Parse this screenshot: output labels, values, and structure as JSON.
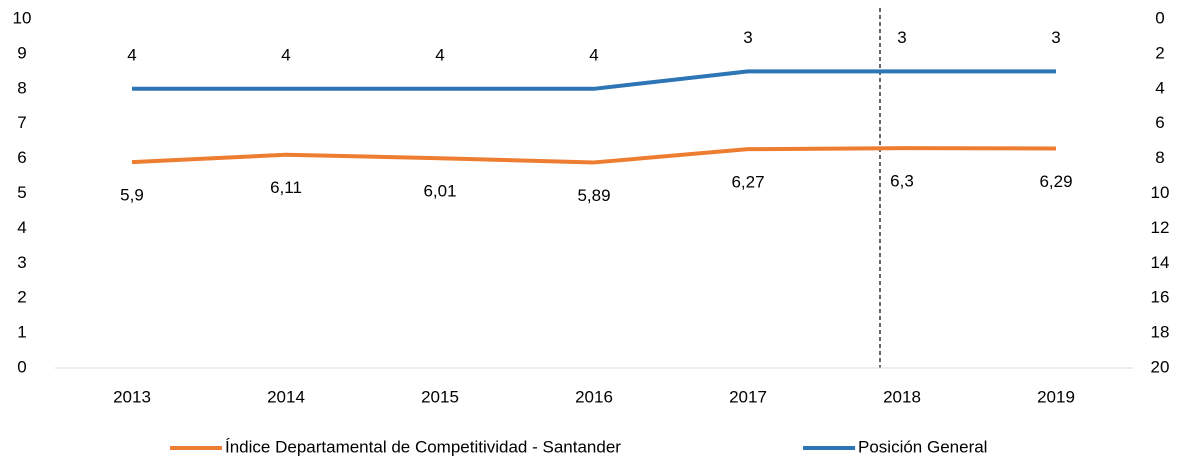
{
  "chart_data": {
    "type": "line",
    "categories": [
      "2013",
      "2014",
      "2015",
      "2016",
      "2017",
      "2018",
      "2019"
    ],
    "series": [
      {
        "name": "Índice Departamental de Competitividad - Santander",
        "color": "#ed7d31",
        "axis": "y",
        "values": [
          5.9,
          6.11,
          6.01,
          5.89,
          6.27,
          6.3,
          6.29
        ],
        "value_labels": [
          "5,9",
          "6,11",
          "6,01",
          "5,89",
          "6,27",
          "6,3",
          "6,29"
        ]
      },
      {
        "name": "Posición General",
        "color": "#2e75b6",
        "axis": "y2",
        "values": [
          4,
          4,
          4,
          4,
          3,
          3,
          3
        ]
      }
    ],
    "ylim": [
      0,
      10
    ],
    "yticks": [
      0,
      1,
      2,
      3,
      4,
      5,
      6,
      7,
      8,
      9,
      10
    ],
    "y2lim": [
      20,
      0
    ],
    "y2ticks": [
      0,
      2,
      4,
      6,
      8,
      10,
      12,
      14,
      16,
      18,
      20
    ],
    "legend": "bottom"
  }
}
